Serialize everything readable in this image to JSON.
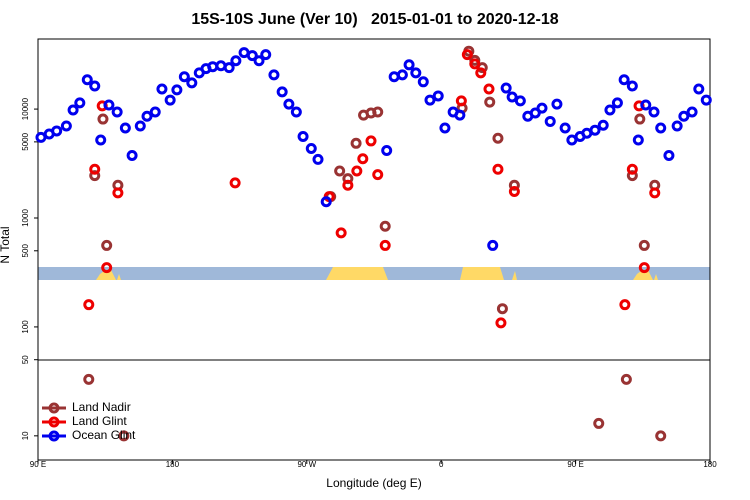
{
  "chart_data": {
    "type": "scatter",
    "title": "15S-10S June (Ver 10)   2015-01-01 to 2020-12-18",
    "x_label": "Longitude (deg E)",
    "y_label": "N Total",
    "log_y": true,
    "legend": "bottom-left",
    "xlim": [
      90,
      540
    ],
    "xticks": [
      {
        "value": 90,
        "label": "90 E"
      },
      180,
      {
        "value": 270,
        "label": "90 W"
      },
      {
        "value": 360,
        "label": "0"
      },
      {
        "value": 450,
        "label": "90 E"
      },
      {
        "value": 540,
        "label": "180"
      }
    ],
    "ylim": [
      6,
      44000
    ],
    "yticks": [
      10,
      50,
      100,
      500,
      1000,
      5000,
      10000
    ],
    "series": [
      {
        "name": "Land Nadir",
        "color": "#993333",
        "x": [
          124,
          128,
          133.5,
          136,
          143.5,
          147.5,
          286,
          292,
          297.5,
          303,
          308,
          313,
          317.5,
          322.5,
          374,
          378.5,
          382.5,
          387.5,
          392.5,
          398,
          401,
          409,
          465.5,
          484,
          488,
          493,
          496,
          503,
          507
        ],
        "values": [
          33,
          2450,
          8100,
          560,
          2000,
          10,
          1570,
          2700,
          2300,
          4850,
          8800,
          9200,
          9400,
          840,
          10200,
          34000,
          28000,
          24000,
          11600,
          5400,
          147,
          2000,
          13,
          33,
          2450,
          8100,
          560,
          2000,
          10
        ]
      },
      {
        "name": "Land Glint",
        "color": "#ee0000",
        "x": [
          124,
          128,
          133,
          136,
          143.5,
          222,
          285,
          293,
          297.5,
          303.5,
          307.5,
          313,
          317.5,
          322.5,
          373.5,
          377.5,
          382.5,
          386.5,
          392,
          398,
          400,
          409,
          483,
          488,
          492.5,
          496,
          503
        ],
        "values": [
          160,
          2800,
          10700,
          350,
          1700,
          2100,
          1570,
          730,
          2000,
          2700,
          3500,
          5100,
          2500,
          560,
          11900,
          31600,
          26000,
          21500,
          15300,
          2800,
          109,
          1750,
          160,
          2800,
          10700,
          350,
          1700
        ]
      },
      {
        "name": "Ocean Glint",
        "color": "#0000ee",
        "x": [
          92,
          97.5,
          102.5,
          109,
          113.5,
          118,
          123,
          128,
          132,
          137.5,
          143,
          148.5,
          153,
          158.5,
          163,
          168.5,
          173,
          178.5,
          183,
          188,
          193,
          198,
          202.5,
          207,
          212.5,
          218,
          222.5,
          228,
          233.5,
          238,
          242.5,
          248,
          253.5,
          258,
          263,
          267.5,
          273,
          277.5,
          283,
          323.5,
          328.5,
          334,
          338.5,
          343,
          348,
          352.5,
          358,
          362.5,
          368,
          372.5,
          394.5,
          403.5,
          407.5,
          413,
          418,
          423,
          427.5,
          433,
          437.5,
          443,
          447.5,
          453,
          457.5,
          463,
          468.5,
          473,
          478,
          482.5,
          488,
          492,
          497,
          502.5,
          507,
          512.5,
          518,
          522.5,
          528,
          532.5,
          537.5
        ],
        "values": [
          5500,
          5900,
          6300,
          7000,
          9800,
          11400,
          18600,
          16300,
          5200,
          10900,
          9400,
          6700,
          3750,
          7000,
          8600,
          9400,
          15300,
          12100,
          15000,
          19800,
          17400,
          21500,
          23500,
          24500,
          25000,
          24000,
          27800,
          33000,
          31000,
          27800,
          31600,
          20600,
          14400,
          11100,
          9400,
          5600,
          4350,
          3450,
          1410,
          4170,
          19800,
          20600,
          25500,
          21500,
          17800,
          12100,
          13200,
          6700,
          9400,
          8800,
          560,
          15600,
          12900,
          11900,
          8600,
          9200,
          10200,
          7700,
          11100,
          6700,
          5200,
          5600,
          6000,
          6400,
          7100,
          9800,
          11400,
          18600,
          16300,
          5200,
          10900,
          9400,
          6700,
          3750,
          7000,
          8600,
          9400,
          15300,
          12100
        ]
      }
    ]
  }
}
